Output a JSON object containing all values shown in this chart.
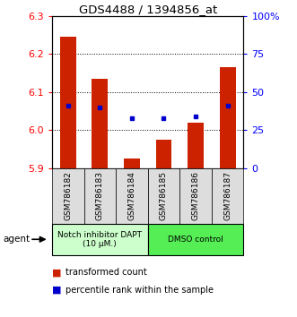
{
  "title": "GDS4488 / 1394856_at",
  "samples": [
    "GSM786182",
    "GSM786183",
    "GSM786184",
    "GSM786185",
    "GSM786186",
    "GSM786187"
  ],
  "red_values": [
    6.245,
    6.135,
    5.925,
    5.975,
    6.02,
    6.165
  ],
  "blue_values": [
    6.065,
    6.06,
    6.03,
    6.03,
    6.035,
    6.065
  ],
  "ylim_left": [
    5.9,
    6.3
  ],
  "ylim_right": [
    0,
    100
  ],
  "yticks_left": [
    5.9,
    6.0,
    6.1,
    6.2,
    6.3
  ],
  "yticks_right": [
    0,
    25,
    50,
    75,
    100
  ],
  "ytick_labels_right": [
    "0",
    "25",
    "50",
    "75",
    "100%"
  ],
  "group1_label": "Notch inhibitor DAPT\n(10 μM.)",
  "group2_label": "DMSO control",
  "group1_color": "#ccffcc",
  "group2_color": "#55ee55",
  "sample_box_color": "#dddddd",
  "bar_color": "#cc2200",
  "dot_color": "#0000cc",
  "base_value": 5.9,
  "legend_red": "transformed count",
  "legend_blue": "percentile rank within the sample",
  "agent_label": "agent"
}
